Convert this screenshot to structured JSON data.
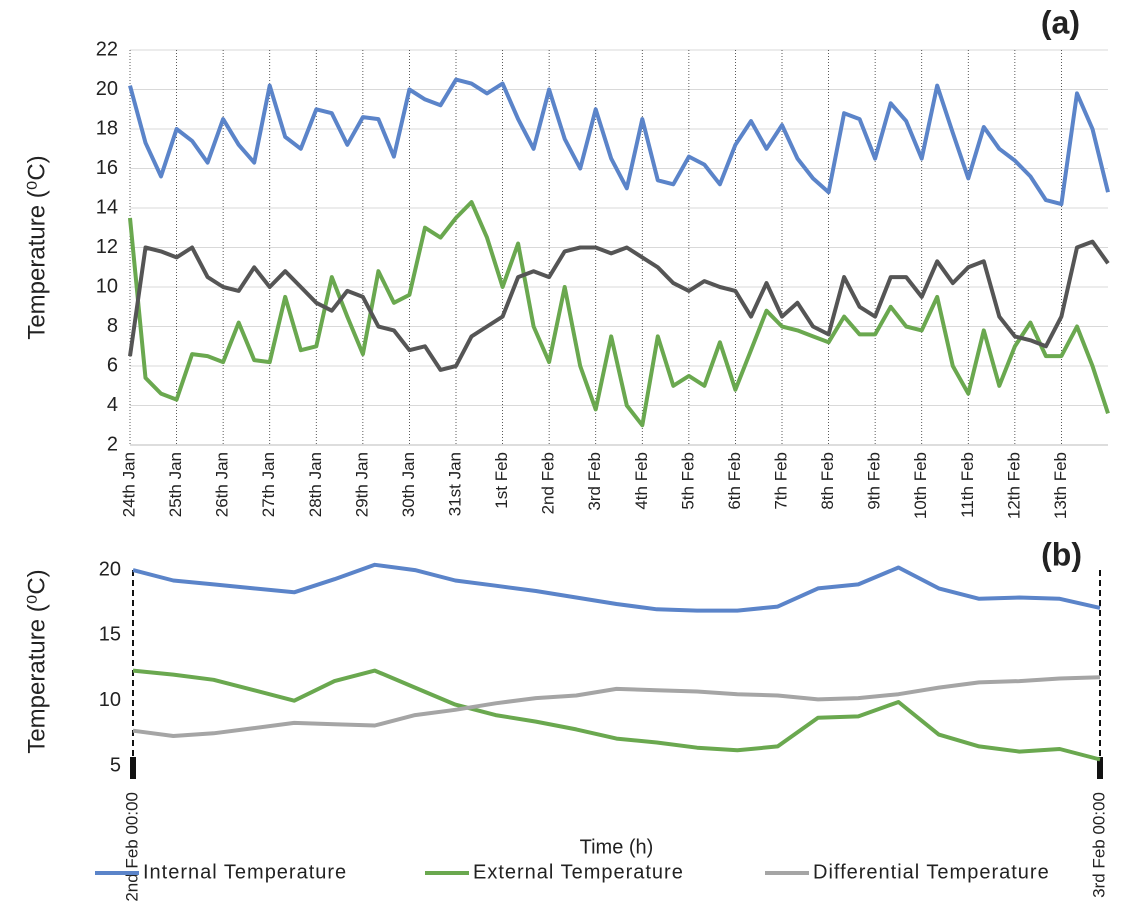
{
  "chart_data": [
    {
      "type": "line",
      "panel_label": "(a)",
      "y_label": "Temperature (⁰C)",
      "ylim": [
        2,
        22
      ],
      "yticks": [
        2,
        4,
        6,
        8,
        10,
        12,
        14,
        16,
        18,
        20,
        22
      ],
      "grid": true,
      "categories": [
        "24th Jan",
        null,
        null,
        "25th Jan",
        null,
        null,
        "26th Jan",
        null,
        null,
        "27th Jan",
        null,
        null,
        "28th Jan",
        null,
        null,
        "29th Jan",
        null,
        null,
        "30th Jan",
        null,
        null,
        "31st Jan",
        null,
        null,
        "1st Feb",
        null,
        null,
        "2nd Feb",
        null,
        null,
        "3rd Feb",
        null,
        null,
        "4th Feb",
        null,
        null,
        "5th Feb",
        null,
        null,
        "6th Feb",
        null,
        null,
        "7th Feb",
        null,
        null,
        "8th Feb",
        null,
        null,
        "9th Feb",
        null,
        null,
        "10th Feb",
        null,
        null,
        "11th Feb",
        null,
        null,
        "12th Feb",
        null,
        null,
        "13th Feb",
        null,
        null,
        null
      ],
      "series": [
        {
          "color": "#5b84c9",
          "values": [
            20.2,
            17.3,
            15.6,
            18.0,
            17.4,
            16.3,
            18.5,
            17.2,
            16.3,
            20.2,
            17.6,
            17.0,
            19.0,
            18.8,
            17.2,
            18.6,
            18.5,
            16.6,
            20.0,
            19.5,
            19.2,
            20.5,
            20.3,
            19.8,
            20.3,
            18.5,
            17.0,
            20.0,
            17.5,
            16.0,
            19.0,
            16.5,
            15.0,
            18.5,
            15.4,
            15.2,
            16.6,
            16.2,
            15.2,
            17.2,
            18.4,
            17.0,
            18.2,
            16.5,
            15.5,
            14.8,
            18.8,
            18.5,
            16.5,
            19.3,
            18.4,
            16.5,
            20.2,
            17.8,
            15.5,
            18.1,
            17.0,
            16.4,
            15.6,
            14.4,
            14.2,
            19.8,
            18.0,
            14.8
          ]
        },
        {
          "color": "#6aa84f",
          "values": [
            13.5,
            5.4,
            4.6,
            4.3,
            6.6,
            6.5,
            6.2,
            8.2,
            6.3,
            6.2,
            9.5,
            6.8,
            7.0,
            10.5,
            8.5,
            6.6,
            10.8,
            9.2,
            9.6,
            13.0,
            12.5,
            13.5,
            14.3,
            12.5,
            10.0,
            12.2,
            8.0,
            6.2,
            10.0,
            6.0,
            3.8,
            7.5,
            4.0,
            3.0,
            7.5,
            5.0,
            5.5,
            5.0,
            7.2,
            4.8,
            6.8,
            8.8,
            8.0,
            7.8,
            7.5,
            7.2,
            8.5,
            7.6,
            7.6,
            9.0,
            8.0,
            7.8,
            9.5,
            6.0,
            4.6,
            7.8,
            5.0,
            7.0,
            8.2,
            6.5,
            6.5,
            8.0,
            6.0,
            3.6
          ]
        },
        {
          "color": "#555555",
          "values": [
            6.5,
            12.0,
            11.8,
            11.5,
            12.0,
            10.5,
            10.0,
            9.8,
            11.0,
            10.0,
            10.8,
            10.0,
            9.2,
            8.8,
            9.8,
            9.5,
            8.0,
            7.8,
            6.8,
            7.0,
            5.8,
            6.0,
            7.5,
            8.0,
            8.5,
            10.5,
            10.8,
            10.5,
            11.8,
            12.0,
            12.0,
            11.7,
            12.0,
            11.5,
            11.0,
            10.2,
            9.8,
            10.3,
            10.0,
            9.8,
            8.5,
            10.2,
            8.5,
            9.2,
            8.0,
            7.6,
            10.5,
            9.0,
            8.5,
            10.5,
            10.5,
            9.5,
            11.3,
            10.2,
            11.0,
            11.3,
            8.5,
            7.5,
            7.3,
            7.0,
            8.5,
            12.0,
            12.3,
            11.2
          ]
        }
      ]
    },
    {
      "type": "line",
      "panel_label": "(b)",
      "y_label": "Temperature (⁰C)",
      "x_label": "Time (h)",
      "ylim": [
        5,
        21
      ],
      "yticks": [
        5,
        10,
        15,
        20
      ],
      "grid": false,
      "categories": [
        "2nd Feb 00:00",
        null,
        null,
        null,
        null,
        null,
        null,
        null,
        null,
        null,
        null,
        null,
        null,
        null,
        null,
        null,
        null,
        null,
        null,
        null,
        null,
        null,
        null,
        null,
        "3rd Feb 00:00"
      ],
      "series": [
        {
          "name": "Internal Temperature",
          "color": "#5b84c9",
          "values": [
            20.0,
            19.2,
            18.9,
            18.6,
            18.3,
            19.3,
            20.4,
            20.0,
            19.2,
            18.8,
            18.4,
            17.9,
            17.4,
            17.0,
            16.9,
            16.9,
            17.2,
            18.6,
            18.9,
            20.2,
            18.6,
            17.8,
            17.9,
            17.8,
            17.1
          ]
        },
        {
          "name": "External Temperature",
          "color": "#6aa84f",
          "values": [
            12.3,
            12.0,
            11.6,
            10.8,
            10.0,
            11.5,
            12.3,
            11.0,
            9.7,
            8.9,
            8.4,
            7.8,
            7.1,
            6.8,
            6.4,
            6.2,
            6.5,
            8.7,
            8.8,
            9.9,
            7.4,
            6.5,
            6.1,
            6.3,
            5.5
          ]
        },
        {
          "name": "Differential Temperature",
          "color": "#a5a5a5",
          "values": [
            7.7,
            7.3,
            7.5,
            7.9,
            8.3,
            8.2,
            8.1,
            8.9,
            9.3,
            9.8,
            10.2,
            10.4,
            10.9,
            10.8,
            10.7,
            10.5,
            10.4,
            10.1,
            10.2,
            10.5,
            11.0,
            11.4,
            11.5,
            11.7,
            11.8
          ]
        }
      ]
    }
  ]
}
